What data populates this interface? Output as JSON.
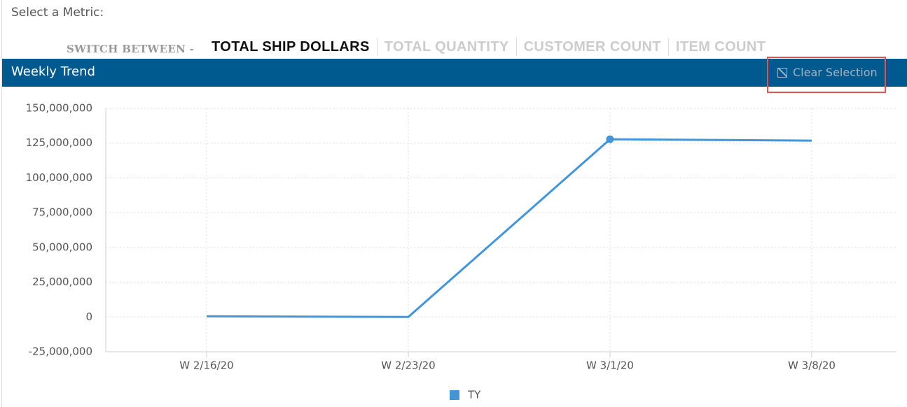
{
  "header": {
    "prompt": "Select a Metric:",
    "switch_label": "SWITCH BETWEEN -",
    "tabs": [
      "TOTAL SHIP DOLLARS",
      "TOTAL QUANTITY",
      "CUSTOMER COUNT",
      "ITEM COUNT"
    ]
  },
  "panel": {
    "title": "Weekly Trend",
    "clear_button": "Clear Selection"
  },
  "chart_data": {
    "type": "line",
    "categories": [
      "W 2/16/20",
      "W 2/23/20",
      "W 3/1/20",
      "W 3/8/20"
    ],
    "series": [
      {
        "name": "TY",
        "color": "#4395d7",
        "values": [
          500000,
          0,
          127800000,
          126800000
        ]
      }
    ],
    "ylim": [
      -25000000,
      150000000
    ],
    "yticks": [
      {
        "value": -25000000,
        "label": "-25,000,000"
      },
      0,
      {
        "value": 25000000,
        "label": "25,000,000"
      },
      {
        "value": 50000000,
        "label": "50,000,000"
      },
      {
        "value": 75000000,
        "label": "75,000,000"
      },
      {
        "value": 100000000,
        "label": "100,000,000"
      },
      {
        "value": 125000000,
        "label": "125,000,000"
      },
      {
        "value": 150000000,
        "label": "150,000,000"
      }
    ],
    "grid": true
  }
}
